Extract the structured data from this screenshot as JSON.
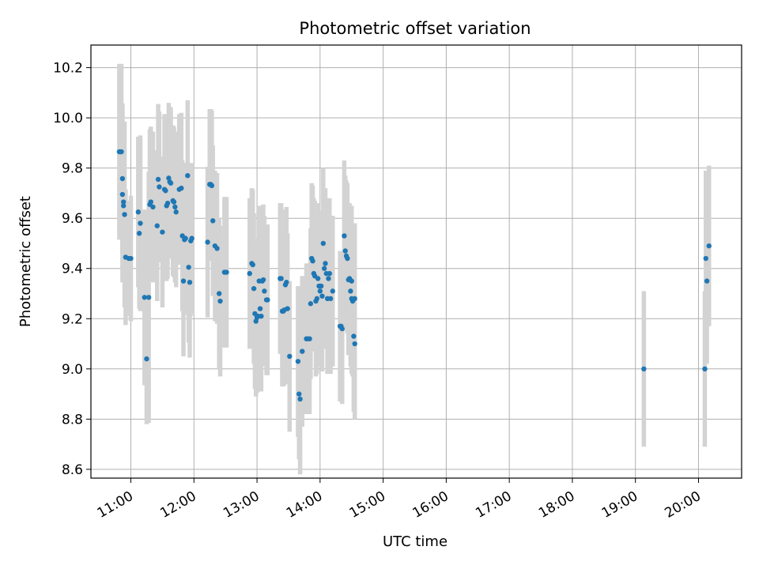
{
  "chart_data": {
    "type": "scatter",
    "title": "Photometric offset variation",
    "xlabel": "UTC time",
    "ylabel": "Photometric offset",
    "xlim": [
      "10:22",
      "20:41"
    ],
    "ylim": [
      8.565,
      10.29
    ],
    "grid": true,
    "legend": "none",
    "xticks": [
      "11:00",
      "12:00",
      "13:00",
      "14:00",
      "15:00",
      "16:00",
      "17:00",
      "18:00",
      "19:00",
      "20:00"
    ],
    "yticks": [
      8.6,
      8.8,
      9.0,
      9.2,
      9.4,
      9.6,
      9.8,
      10.0,
      10.2
    ],
    "yticklabels": [
      "8.6",
      "8.8",
      "9.0",
      "9.2",
      "9.4",
      "9.6",
      "9.8",
      "10.0",
      "10.2"
    ],
    "colors": {
      "point": "#1f77b4",
      "errorbar": "#d3d3d3",
      "grid": "#b0b0b0"
    },
    "series": [
      {
        "x": [
          "10:49",
          "10:50",
          "10:51",
          "10:52",
          "10:52",
          "10:53",
          "10:53",
          "10:54",
          "10:55",
          "10:58",
          "11:00",
          "11:07",
          "11:08",
          "11:09",
          "11:13",
          "11:15",
          "11:17",
          "11:18",
          "11:19",
          "11:21",
          "11:25",
          "11:26",
          "11:27",
          "11:30",
          "11:32",
          "11:33",
          "11:34",
          "11:35",
          "11:36",
          "11:37",
          "11:38",
          "11:40",
          "11:41",
          "11:42",
          "11:43",
          "11:46",
          "11:48",
          "11:49",
          "11:50",
          "11:51",
          "11:52",
          "11:54",
          "11:55",
          "11:56",
          "11:57",
          "11:58",
          "12:13",
          "12:15",
          "12:16",
          "12:17",
          "12:18",
          "12:20",
          "12:22",
          "12:24",
          "12:25",
          "12:29",
          "12:31",
          "12:53",
          "12:55",
          "12:56",
          "12:57",
          "12:58",
          "12:59",
          "13:00",
          "13:01",
          "13:02",
          "13:03",
          "13:04",
          "13:05",
          "13:06",
          "13:07",
          "13:09",
          "13:10",
          "13:22",
          "13:23",
          "13:24",
          "13:25",
          "13:26",
          "13:27",
          "13:28",
          "13:29",
          "13:31",
          "13:39",
          "13:40",
          "13:41",
          "13:43",
          "13:47",
          "13:48",
          "13:50",
          "13:51",
          "13:52",
          "13:53",
          "13:54",
          "13:55",
          "13:56",
          "13:57",
          "13:58",
          "13:59",
          "14:00",
          "14:01",
          "14:02",
          "14:03",
          "14:04",
          "14:05",
          "14:06",
          "14:07",
          "14:08",
          "14:09",
          "14:10",
          "14:12",
          "14:19",
          "14:20",
          "14:21",
          "14:23",
          "14:24",
          "14:25",
          "14:26",
          "14:27",
          "14:28",
          "14:29",
          "14:30",
          "14:30",
          "14:31",
          "14:32",
          "14:33",
          "14:33",
          "19:08",
          "20:06",
          "20:07",
          "20:08",
          "20:10"
        ],
        "y": [
          9.865,
          9.865,
          9.865,
          9.758,
          9.695,
          9.665,
          9.65,
          9.615,
          9.445,
          9.44,
          9.44,
          9.625,
          9.54,
          9.58,
          9.285,
          9.04,
          9.285,
          9.655,
          9.665,
          9.645,
          9.57,
          9.755,
          9.725,
          9.545,
          9.715,
          9.71,
          9.65,
          9.66,
          9.76,
          9.745,
          9.74,
          9.67,
          9.665,
          9.645,
          9.625,
          9.715,
          9.72,
          9.53,
          9.35,
          9.515,
          9.52,
          9.77,
          9.405,
          9.345,
          9.51,
          9.52,
          9.505,
          9.735,
          9.735,
          9.73,
          9.59,
          9.49,
          9.48,
          9.3,
          9.27,
          9.385,
          9.385,
          9.38,
          9.42,
          9.415,
          9.32,
          9.22,
          9.19,
          9.205,
          9.21,
          9.35,
          9.24,
          9.21,
          9.35,
          9.355,
          9.31,
          9.275,
          9.275,
          9.36,
          9.36,
          9.23,
          9.23,
          9.235,
          9.335,
          9.345,
          9.24,
          9.05,
          9.03,
          8.9,
          8.88,
          9.07,
          9.12,
          9.12,
          9.12,
          9.26,
          9.44,
          9.43,
          9.38,
          9.37,
          9.27,
          9.28,
          9.36,
          9.33,
          9.31,
          9.33,
          9.29,
          9.5,
          9.4,
          9.42,
          9.38,
          9.28,
          9.36,
          9.38,
          9.28,
          9.31,
          9.17,
          9.17,
          9.16,
          9.53,
          9.47,
          9.45,
          9.44,
          9.355,
          9.36,
          9.31,
          9.28,
          9.35,
          9.27,
          9.13,
          9.1,
          9.28,
          9.0,
          9.0,
          9.44,
          9.35,
          9.49
        ],
        "err": [
          0.35,
          0.35,
          0.35,
          0.3,
          0.35,
          0.3,
          0.3,
          0.37,
          0.27,
          0.23,
          0.25,
          0.3,
          0.3,
          0.35,
          0.35,
          0.26,
          0.5,
          0.3,
          0.3,
          0.3,
          0.3,
          0.3,
          0.3,
          0.3,
          0.3,
          0.3,
          0.3,
          0.3,
          0.3,
          0.3,
          0.3,
          0.3,
          0.3,
          0.3,
          0.3,
          0.3,
          0.3,
          0.3,
          0.3,
          0.3,
          0.3,
          0.3,
          0.3,
          0.3,
          0.3,
          0.3,
          0.3,
          0.3,
          0.3,
          0.3,
          0.3,
          0.3,
          0.3,
          0.3,
          0.3,
          0.3,
          0.3,
          0.3,
          0.3,
          0.3,
          0.3,
          0.3,
          0.3,
          0.3,
          0.3,
          0.3,
          0.3,
          0.3,
          0.3,
          0.3,
          0.3,
          0.3,
          0.3,
          0.3,
          0.3,
          0.3,
          0.3,
          0.3,
          0.3,
          0.3,
          0.3,
          0.3,
          0.3,
          0.26,
          0.3,
          0.3,
          0.3,
          0.3,
          0.3,
          0.3,
          0.3,
          0.3,
          0.3,
          0.3,
          0.3,
          0.3,
          0.3,
          0.3,
          0.3,
          0.3,
          0.3,
          0.3,
          0.3,
          0.3,
          0.3,
          0.3,
          0.3,
          0.3,
          0.3,
          0.3,
          0.3,
          0.3,
          0.3,
          0.3,
          0.3,
          0.3,
          0.3,
          0.3,
          0.3,
          0.3,
          0.3,
          0.3,
          0.3,
          0.3,
          0.3,
          0.3,
          0.31,
          0.31,
          0.35,
          0.33,
          0.32
        ]
      }
    ]
  }
}
